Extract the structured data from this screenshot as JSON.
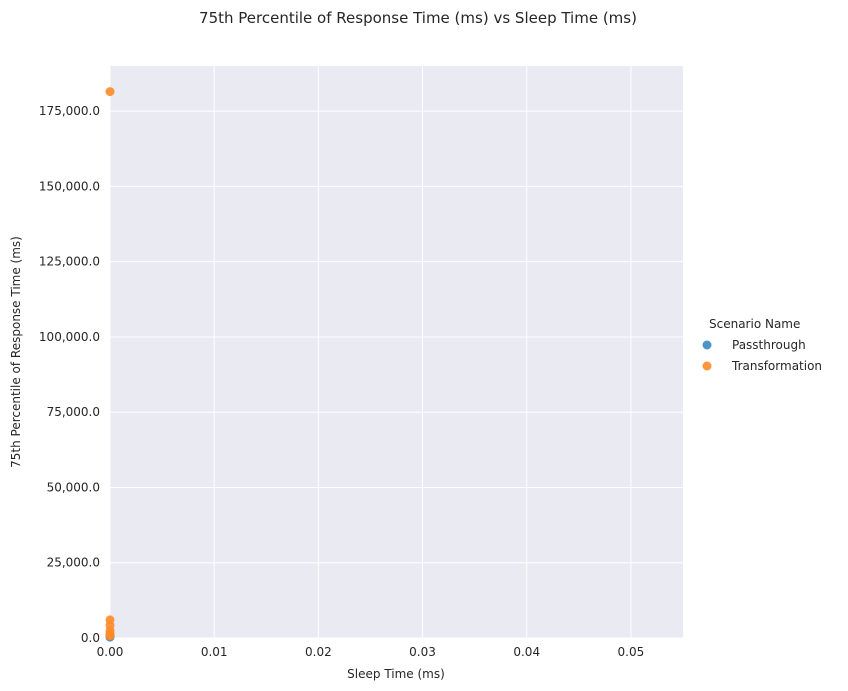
{
  "chart_data": {
    "type": "scatter",
    "title": "75th Percentile of Response Time (ms) vs Sleep Time (ms)",
    "xlabel": "Sleep Time (ms)",
    "ylabel": "75th Percentile of Response Time (ms)",
    "xlim": [
      0,
      0.055
    ],
    "ylim": [
      0,
      190000
    ],
    "xticks": [
      0,
      0.01,
      0.02,
      0.03,
      0.04,
      0.05
    ],
    "xtick_labels": [
      "0.00",
      "0.01",
      "0.02",
      "0.03",
      "0.04",
      "0.05"
    ],
    "yticks": [
      0,
      25000,
      50000,
      75000,
      100000,
      125000,
      150000,
      175000
    ],
    "ytick_labels": [
      "0.0",
      "25,000.0",
      "50,000.0",
      "75,000.0",
      "100,000.0",
      "125,000.0",
      "150,000.0",
      "175,000.0"
    ],
    "grid": true,
    "legend": {
      "title": "Scenario Name",
      "position": "right"
    },
    "series": [
      {
        "name": "Passthrough",
        "color": "#3a87bf",
        "points": [
          {
            "x": 0,
            "y": 300
          },
          {
            "x": 0,
            "y": 600
          },
          {
            "x": 0,
            "y": 1000
          }
        ]
      },
      {
        "name": "Transformation",
        "color": "#ff8b28",
        "points": [
          {
            "x": 0,
            "y": 181500
          },
          {
            "x": 0,
            "y": 6000
          },
          {
            "x": 0,
            "y": 4200
          },
          {
            "x": 0,
            "y": 2500
          },
          {
            "x": 0,
            "y": 1400
          },
          {
            "x": 0,
            "y": 700
          }
        ]
      }
    ]
  }
}
